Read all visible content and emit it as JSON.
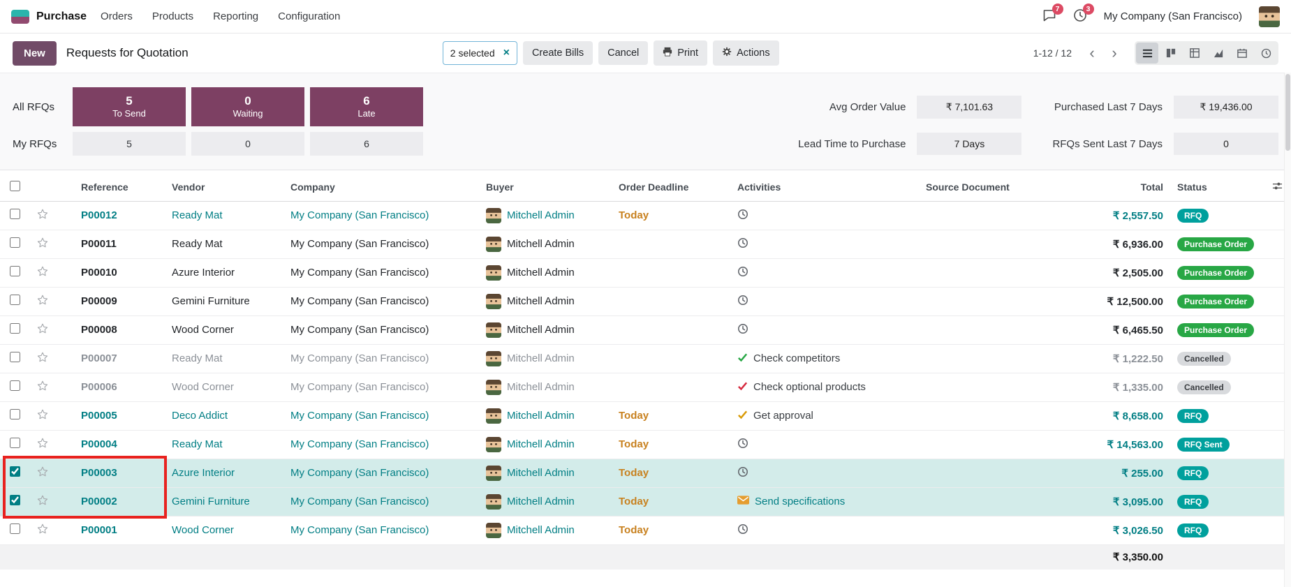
{
  "colors": {
    "accent": "#714B67",
    "kpi_box": "#7d4063",
    "link": "#017e84",
    "selected_row_bg": "#d3ecea",
    "badge_rfq": "#00a09d",
    "badge_purchase_order": "#28a745",
    "badge_cancelled_bg": "#d8dadd",
    "today_text": "#c8811f",
    "notification_badge": "#dc4a63",
    "annotation_box": "#e8221f"
  },
  "nav": {
    "app_name": "Purchase",
    "menus": [
      {
        "label": "Orders"
      },
      {
        "label": "Products"
      },
      {
        "label": "Reporting"
      },
      {
        "label": "Configuration"
      }
    ],
    "messages_badge": "7",
    "activities_badge": "3",
    "company": "My Company (San Francisco)"
  },
  "control_panel": {
    "new_button": "New",
    "title": "Requests for Quotation",
    "selection_count": "2 selected",
    "selection_clear": "×",
    "buttons": {
      "create_bills": "Create Bills",
      "cancel": "Cancel",
      "print": "Print",
      "actions": "Actions"
    },
    "pager": "1-12 / 12"
  },
  "dashboard": {
    "row_labels": {
      "all": "All RFQs",
      "my": "My RFQs"
    },
    "kpis": [
      {
        "value": "5",
        "label": "To Send",
        "my_value": "5"
      },
      {
        "value": "0",
        "label": "Waiting",
        "my_value": "0"
      },
      {
        "value": "6",
        "label": "Late",
        "my_value": "6"
      }
    ],
    "stats": [
      {
        "label": "Avg Order Value",
        "value": "₹ 7,101.63"
      },
      {
        "label": "Lead Time to Purchase",
        "value": "7 Days"
      },
      {
        "label": "Purchased Last 7 Days",
        "value": "₹ 19,436.00"
      },
      {
        "label": "RFQs Sent Last 7 Days",
        "value": "0"
      }
    ]
  },
  "table": {
    "headers": {
      "reference": "Reference",
      "vendor": "Vendor",
      "company": "Company",
      "buyer": "Buyer",
      "deadline": "Order Deadline",
      "activities": "Activities",
      "source": "Source Document",
      "total": "Total",
      "status": "Status"
    },
    "rows": [
      {
        "ref": "P00012",
        "vendor": "Ready Mat",
        "company": "My Company (San Francisco)",
        "buyer": "Mitchell Admin",
        "deadline": "Today",
        "activity_icon": "clock",
        "activity_label": "",
        "total": "₹ 2,557.50",
        "status": "RFQ",
        "state": "rfq",
        "selected": false
      },
      {
        "ref": "P00011",
        "vendor": "Ready Mat",
        "company": "My Company (San Francisco)",
        "buyer": "Mitchell Admin",
        "deadline": "",
        "activity_icon": "clock",
        "activity_label": "",
        "total": "₹ 6,936.00",
        "status": "Purchase Order",
        "state": "po",
        "selected": false
      },
      {
        "ref": "P00010",
        "vendor": "Azure Interior",
        "company": "My Company (San Francisco)",
        "buyer": "Mitchell Admin",
        "deadline": "",
        "activity_icon": "clock",
        "activity_label": "",
        "total": "₹ 2,505.00",
        "status": "Purchase Order",
        "state": "po",
        "selected": false
      },
      {
        "ref": "P00009",
        "vendor": "Gemini Furniture",
        "company": "My Company (San Francisco)",
        "buyer": "Mitchell Admin",
        "deadline": "",
        "activity_icon": "clock",
        "activity_label": "",
        "total": "₹ 12,500.00",
        "status": "Purchase Order",
        "state": "po",
        "selected": false
      },
      {
        "ref": "P00008",
        "vendor": "Wood Corner",
        "company": "My Company (San Francisco)",
        "buyer": "Mitchell Admin",
        "deadline": "",
        "activity_icon": "clock",
        "activity_label": "",
        "total": "₹ 6,465.50",
        "status": "Purchase Order",
        "state": "po",
        "selected": false
      },
      {
        "ref": "P00007",
        "vendor": "Ready Mat",
        "company": "My Company (San Francisco)",
        "buyer": "Mitchell Admin",
        "deadline": "",
        "activity_icon": "check",
        "activity_color": "#28a745",
        "activity_label": "Check competitors",
        "total": "₹ 1,222.50",
        "status": "Cancelled",
        "state": "cancelled",
        "selected": false
      },
      {
        "ref": "P00006",
        "vendor": "Wood Corner",
        "company": "My Company (San Francisco)",
        "buyer": "Mitchell Admin",
        "deadline": "",
        "activity_icon": "check",
        "activity_color": "#d6293e",
        "activity_label": "Check optional products",
        "total": "₹ 1,335.00",
        "status": "Cancelled",
        "state": "cancelled",
        "selected": false
      },
      {
        "ref": "P00005",
        "vendor": "Deco Addict",
        "company": "My Company (San Francisco)",
        "buyer": "Mitchell Admin",
        "deadline": "Today",
        "activity_icon": "check",
        "activity_color": "#d99a06",
        "activity_label": "Get approval",
        "total": "₹ 8,658.00",
        "status": "RFQ",
        "state": "rfq",
        "selected": false
      },
      {
        "ref": "P00004",
        "vendor": "Ready Mat",
        "company": "My Company (San Francisco)",
        "buyer": "Mitchell Admin",
        "deadline": "Today",
        "activity_icon": "clock",
        "activity_label": "",
        "total": "₹ 14,563.00",
        "status": "RFQ Sent",
        "state": "rfq",
        "selected": false
      },
      {
        "ref": "P00003",
        "vendor": "Azure Interior",
        "company": "My Company (San Francisco)",
        "buyer": "Mitchell Admin",
        "deadline": "Today",
        "activity_icon": "clock",
        "activity_label": "",
        "total": "₹ 255.00",
        "status": "RFQ",
        "state": "rfq",
        "selected": true
      },
      {
        "ref": "P00002",
        "vendor": "Gemini Furniture",
        "company": "My Company (San Francisco)",
        "buyer": "Mitchell Admin",
        "deadline": "Today",
        "activity_icon": "envelope",
        "activity_color": "#e59d2f",
        "activity_label": "Send specifications",
        "total": "₹ 3,095.00",
        "status": "RFQ",
        "state": "rfq",
        "selected": true
      },
      {
        "ref": "P00001",
        "vendor": "Wood Corner",
        "company": "My Company (San Francisco)",
        "buyer": "Mitchell Admin",
        "deadline": "Today",
        "activity_icon": "clock",
        "activity_label": "",
        "total": "₹ 3,026.50",
        "status": "RFQ",
        "state": "rfq",
        "selected": false
      }
    ],
    "footer_total": "₹ 3,350.00"
  },
  "annotation": {
    "highlighted_references": [
      "P00003",
      "P00002"
    ]
  }
}
